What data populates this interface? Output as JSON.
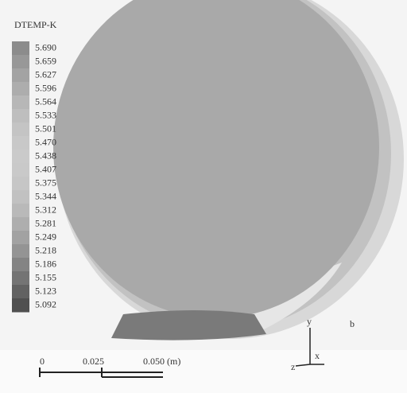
{
  "legend": {
    "title": "DTEMP-K",
    "labels": [
      "5.690",
      "5.659",
      "5.627",
      "5.596",
      "5.564",
      "5.533",
      "5.501",
      "5.470",
      "5.438",
      "5.407",
      "5.375",
      "5.344",
      "5.312",
      "5.281",
      "5.249",
      "5.218",
      "5.186",
      "5.155",
      "5.123",
      "5.092"
    ]
  },
  "scale_bar": {
    "labels": [
      "0",
      "0.025",
      "0.050 (m)"
    ]
  },
  "axes": {
    "vertical": "y",
    "depth": "z",
    "horizontal": "x"
  },
  "panel_label": "b"
}
